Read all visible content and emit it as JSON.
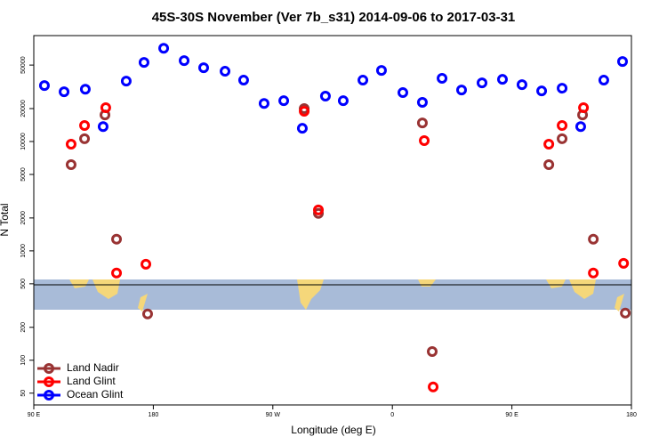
{
  "chart_data": {
    "type": "scatter",
    "title": "45S-30S November (Ver 7b_s31)   2014-09-06 to 2017-03-31",
    "xlabel": "Longitude (deg E)",
    "ylabel": "N Total",
    "xlim": [
      90,
      540
    ],
    "xticks": [
      {
        "value": 90,
        "label": "90 E"
      },
      180,
      {
        "value": 270,
        "label": "90 W"
      },
      {
        "value": 360,
        "label": "0"
      },
      {
        "value": 450,
        "label": "90 E"
      },
      {
        "value": 540,
        "label": "180"
      }
    ],
    "ylim": [
      39,
      93000
    ],
    "yscale": "log",
    "yticks": [
      50,
      100,
      200,
      500,
      1000,
      2000,
      5000,
      10000,
      20000,
      50000
    ],
    "legend": "lower left",
    "series": [
      {
        "name": "Land Nadir",
        "color": "#993333",
        "x": [
          118.1,
          128.2,
          143.6,
          152.3,
          175.7,
          293.6,
          304.3,
          382.6,
          390,
          477.8,
          487.8,
          503.2,
          511.3,
          535.4
        ],
        "values": [
          6140,
          10600,
          17500,
          1280,
          265,
          20000,
          2200,
          14800,
          120,
          6140,
          10600,
          17500,
          1280,
          270
        ]
      },
      {
        "name": "Land Glint",
        "color": "#ff0000",
        "x": [
          118.1,
          128.2,
          144.2,
          152.3,
          174.4,
          293.6,
          304.3,
          384,
          390.7,
          477.8,
          487.8,
          503.9,
          511.3,
          534.1
        ],
        "values": [
          9450,
          14000,
          20400,
          627,
          755,
          18900,
          2370,
          10200,
          57,
          9450,
          14000,
          20400,
          627,
          769
        ]
      },
      {
        "name": "Ocean Glint",
        "color": "#0000ff",
        "x": [
          98,
          112.8,
          128.8,
          142.2,
          159.6,
          173,
          187.8,
          203.2,
          217.9,
          234,
          248,
          263.4,
          278.2,
          292.2,
          309.6,
          323,
          337.8,
          351.8,
          367.9,
          382.6,
          397.4,
          412.1,
          427.5,
          442.9,
          457.6,
          472.4,
          487.8,
          501.8,
          519.2,
          533.3
        ],
        "values": [
          32500,
          28500,
          30100,
          13700,
          35700,
          52900,
          71200,
          54900,
          47300,
          43900,
          36400,
          22300,
          23600,
          13200,
          26000,
          23600,
          36400,
          44700,
          28000,
          22800,
          37800,
          29600,
          34400,
          37000,
          33100,
          29000,
          30700,
          13700,
          36400,
          53900
        ]
      }
    ]
  }
}
